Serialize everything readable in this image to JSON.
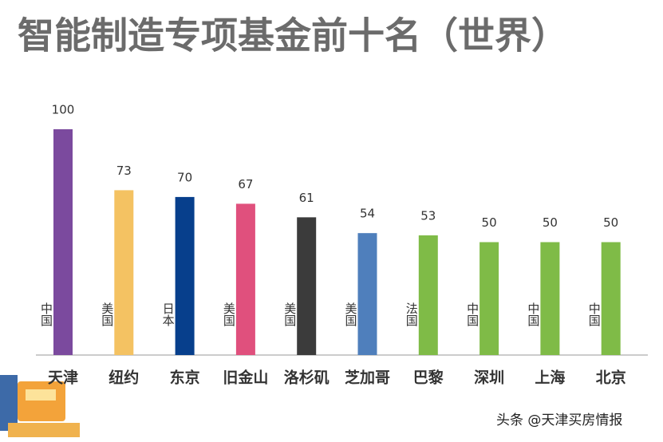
{
  "chart_data": {
    "type": "bar",
    "title": "智能制造专项基金前十名（世界）",
    "categories": [
      "天津",
      "纽约",
      "东京",
      "旧金山",
      "洛杉矶",
      "芝加哥",
      "巴黎",
      "深圳",
      "上海",
      "北京"
    ],
    "countries": [
      "中国",
      "美国",
      "日本",
      "美国",
      "美国",
      "美国",
      "法国",
      "中国",
      "中国",
      "中国"
    ],
    "values": [
      100,
      73,
      70,
      67,
      61,
      54,
      53,
      50,
      50,
      50
    ],
    "colors": [
      "#7b4a9e",
      "#f4c262",
      "#073f8c",
      "#e0507d",
      "#3b3b3b",
      "#4f7fbc",
      "#7fbb47",
      "#7fbb47",
      "#7fbb47",
      "#7fbb47"
    ],
    "watermark": "头条 @天津买房情报"
  }
}
